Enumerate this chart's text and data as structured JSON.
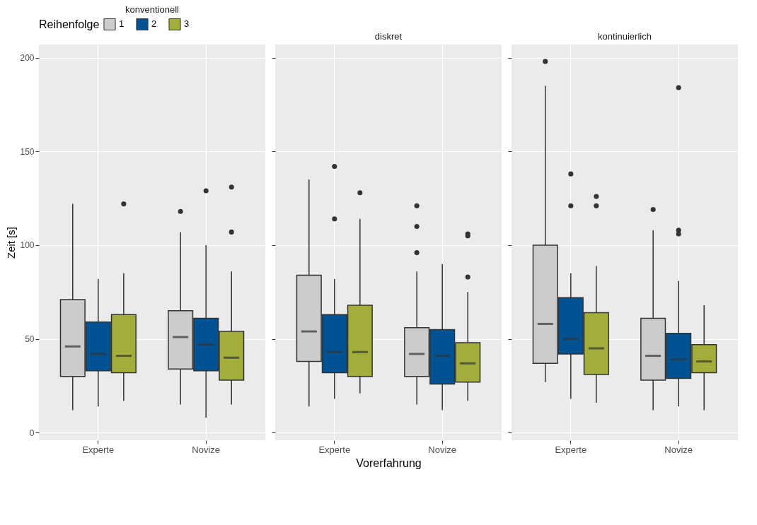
{
  "chart_data": [
    {
      "type": "box",
      "title": "konventionell",
      "ylabel": "Zeit [s]",
      "legend_title": "Reihenfolge",
      "legend": "top",
      "categories": [
        "Experte",
        "Novize"
      ],
      "ylim": [
        -4,
        207
      ],
      "yticks": [
        0,
        50,
        100,
        150,
        200
      ],
      "grid": true,
      "series": [
        {
          "name": "1",
          "color": "#cbccce",
          "boxes": [
            {
              "low": 12,
              "q1": 30,
              "median": 46,
              "q3": 71,
              "high": 122
            },
            {
              "low": 15,
              "q1": 34,
              "median": 51,
              "q3": 65,
              "high": 107,
              "outliers": [
                118
              ]
            }
          ]
        },
        {
          "name": "2",
          "color": "#005293",
          "boxes": [
            {
              "low": 14,
              "q1": 33,
              "median": 42,
              "q3": 59,
              "high": 82
            },
            {
              "low": 8,
              "q1": 33,
              "median": 47,
              "q3": 61,
              "high": 100,
              "outliers": [
                129
              ]
            }
          ]
        },
        {
          "name": "3",
          "color": "#a2ad3a",
          "boxes": [
            {
              "low": 17,
              "q1": 32,
              "median": 41,
              "q3": 63,
              "high": 85,
              "outliers": [
                122
              ]
            },
            {
              "low": 15,
              "q1": 28,
              "median": 40,
              "q3": 54,
              "high": 86,
              "outliers": [
                107,
                131
              ]
            }
          ]
        }
      ]
    },
    {
      "type": "box",
      "title": "diskret",
      "xlabel": "Vorerfahrung",
      "tick_labels": "x",
      "categories": [
        "Experte",
        "Novize"
      ],
      "ylim": [
        -4,
        207
      ],
      "yticks": [
        0,
        50,
        100,
        150,
        200
      ],
      "grid": true,
      "series": [
        {
          "name": "1",
          "color": "#cbccce",
          "boxes": [
            {
              "low": 14,
              "q1": 38,
              "median": 54,
              "q3": 84,
              "high": 135
            },
            {
              "low": 15,
              "q1": 30,
              "median": 42,
              "q3": 56,
              "high": 86,
              "outliers": [
                96,
                110,
                121
              ]
            }
          ]
        },
        {
          "name": "2",
          "color": "#005293",
          "boxes": [
            {
              "low": 18,
              "q1": 32,
              "median": 43,
              "q3": 63,
              "high": 82,
              "outliers": [
                114,
                142
              ]
            },
            {
              "low": 12,
              "q1": 26,
              "median": 41,
              "q3": 55,
              "high": 90
            }
          ]
        },
        {
          "name": "3",
          "color": "#a2ad3a",
          "boxes": [
            {
              "low": 21,
              "q1": 30,
              "median": 43,
              "q3": 68,
              "high": 114,
              "outliers": [
                128
              ]
            },
            {
              "low": 17,
              "q1": 27,
              "median": 37,
              "q3": 48,
              "high": 75,
              "outliers": [
                83,
                105,
                106
              ]
            }
          ]
        }
      ]
    },
    {
      "type": "box",
      "title": "kontinuierlich",
      "tick_labels": "x",
      "categories": [
        "Experte",
        "Novize"
      ],
      "ylim": [
        -4,
        207
      ],
      "yticks": [
        0,
        50,
        100,
        150,
        200
      ],
      "grid": true,
      "series": [
        {
          "name": "1",
          "color": "#cbccce",
          "boxes": [
            {
              "low": 27,
              "q1": 37,
              "median": 58,
              "q3": 100,
              "high": 185,
              "outliers": [
                198
              ]
            },
            {
              "low": 12,
              "q1": 28,
              "median": 41,
              "q3": 61,
              "high": 108,
              "outliers": [
                119
              ]
            }
          ]
        },
        {
          "name": "2",
          "color": "#005293",
          "boxes": [
            {
              "low": 18,
              "q1": 42,
              "median": 50,
              "q3": 72,
              "high": 85,
              "outliers": [
                121,
                138
              ]
            },
            {
              "low": 14,
              "q1": 29,
              "median": 39,
              "q3": 53,
              "high": 81,
              "outliers": [
                106,
                108,
                184
              ]
            }
          ]
        },
        {
          "name": "3",
          "color": "#a2ad3a",
          "boxes": [
            {
              "low": 16,
              "q1": 31,
              "median": 45,
              "q3": 64,
              "high": 89,
              "outliers": [
                121,
                126
              ]
            },
            {
              "low": 12,
              "q1": 32,
              "median": 38,
              "q3": 47,
              "high": 68
            }
          ]
        }
      ]
    }
  ]
}
